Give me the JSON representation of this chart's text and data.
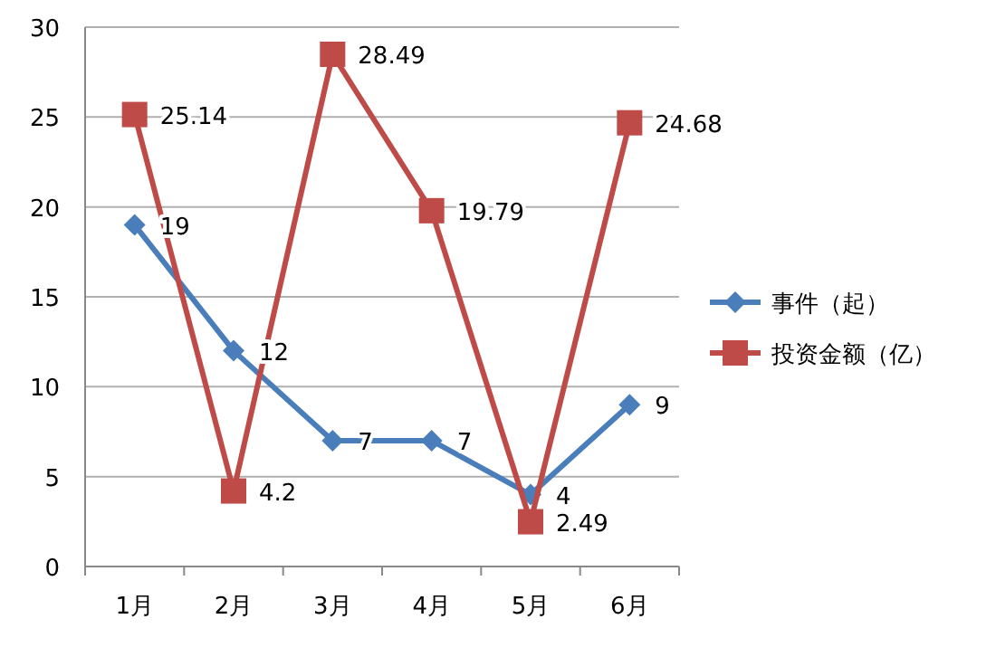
{
  "chart_data": {
    "type": "line",
    "categories": [
      "1月",
      "2月",
      "3月",
      "4月",
      "5月",
      "6月"
    ],
    "series": [
      {
        "name": "事件（起）",
        "color": "#4a7ebb",
        "marker": "diamond",
        "values": [
          19,
          12,
          7,
          7,
          4,
          9
        ]
      },
      {
        "name": "投资金额（亿）",
        "color": "#be4b48",
        "marker": "square",
        "values": [
          25.14,
          4.2,
          28.49,
          19.79,
          2.49,
          24.68
        ]
      }
    ],
    "ylim": [
      0,
      30
    ],
    "yticks": [
      0,
      5,
      10,
      15,
      20,
      25,
      30
    ],
    "grid": "y",
    "legend": "right",
    "data_labels": true,
    "line_style": "solid"
  }
}
